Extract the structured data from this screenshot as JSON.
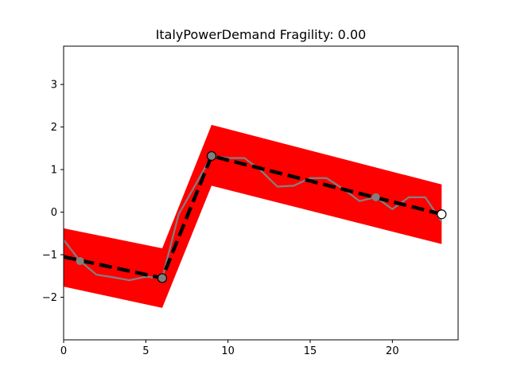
{
  "chart_data": {
    "type": "line",
    "title": "ItalyPowerDemand Fragility: 0.00",
    "xlabel": "",
    "ylabel": "",
    "xlim": [
      0,
      24
    ],
    "ylim": [
      -3,
      3.9
    ],
    "x_ticks": [
      0,
      5,
      10,
      15,
      20
    ],
    "y_ticks": [
      -2,
      -1,
      0,
      1,
      2,
      3
    ],
    "x_tick_labels": [
      "0",
      "5",
      "10",
      "15",
      "20"
    ],
    "y_tick_labels": [
      "−2",
      "−1",
      "0",
      "1",
      "2",
      "3"
    ],
    "grid": false,
    "legend": "none",
    "colors": {
      "band": "#ff0000",
      "series": "#808080",
      "trend": "#000000"
    },
    "band": {
      "x": [
        0,
        6,
        9,
        23
      ],
      "lower": [
        -1.75,
        -2.25,
        0.62,
        -0.75
      ],
      "upper": [
        -0.38,
        -0.85,
        2.05,
        0.65
      ]
    },
    "series": [
      {
        "x": [
          0,
          1,
          2,
          3,
          4,
          5,
          6,
          7,
          8,
          9,
          10,
          11,
          12,
          13,
          14,
          15,
          16,
          17,
          18,
          19,
          20,
          21,
          22,
          23
        ],
        "values": [
          -0.65,
          -1.15,
          -1.47,
          -1.53,
          -1.6,
          -1.52,
          -1.55,
          -0.05,
          0.63,
          1.32,
          1.27,
          1.27,
          0.98,
          0.6,
          0.62,
          0.8,
          0.8,
          0.55,
          0.26,
          0.35,
          0.07,
          0.35,
          0.35,
          -0.22
        ]
      }
    ],
    "trend": {
      "x": [
        0,
        6,
        9,
        23
      ],
      "values": [
        -1.05,
        -1.55,
        1.32,
        -0.05
      ]
    },
    "markers": {
      "x": [
        1,
        6,
        9,
        19,
        23
      ],
      "values": [
        -1.15,
        -1.55,
        1.32,
        0.35,
        -0.05
      ]
    }
  }
}
